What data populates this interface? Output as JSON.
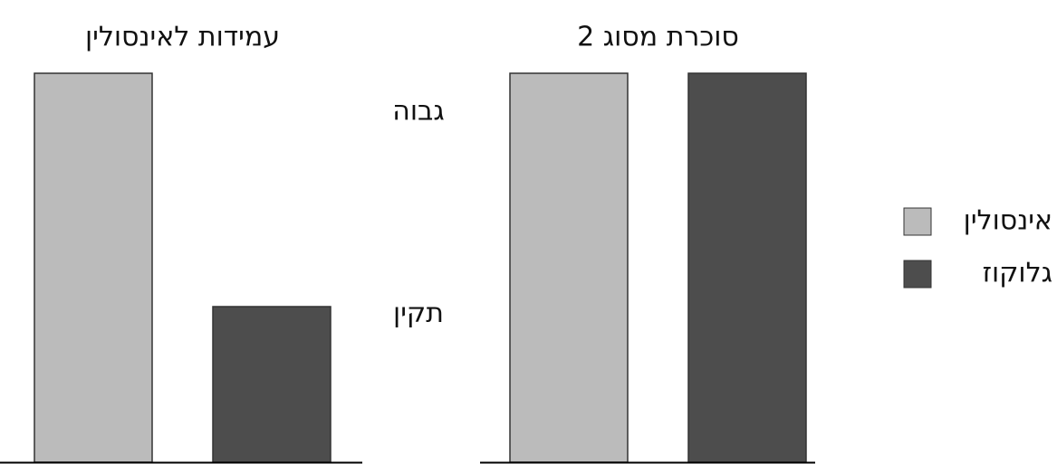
{
  "chart_data": {
    "type": "bar",
    "categories": [
      "עמידות לאינסולין",
      "סוכרת מסוג 2"
    ],
    "series": [
      {
        "name": "אינסולין",
        "color": "#bbbbbb",
        "values": [
          100,
          100
        ]
      },
      {
        "name": "גלוקוז",
        "color": "#4d4d4d",
        "values": [
          40,
          100
        ]
      }
    ],
    "ylim": [
      0,
      100
    ],
    "yticks": [
      {
        "value": 90,
        "label": "גבוה"
      },
      {
        "value": 38,
        "label": "תקין"
      }
    ],
    "legend": "right"
  }
}
